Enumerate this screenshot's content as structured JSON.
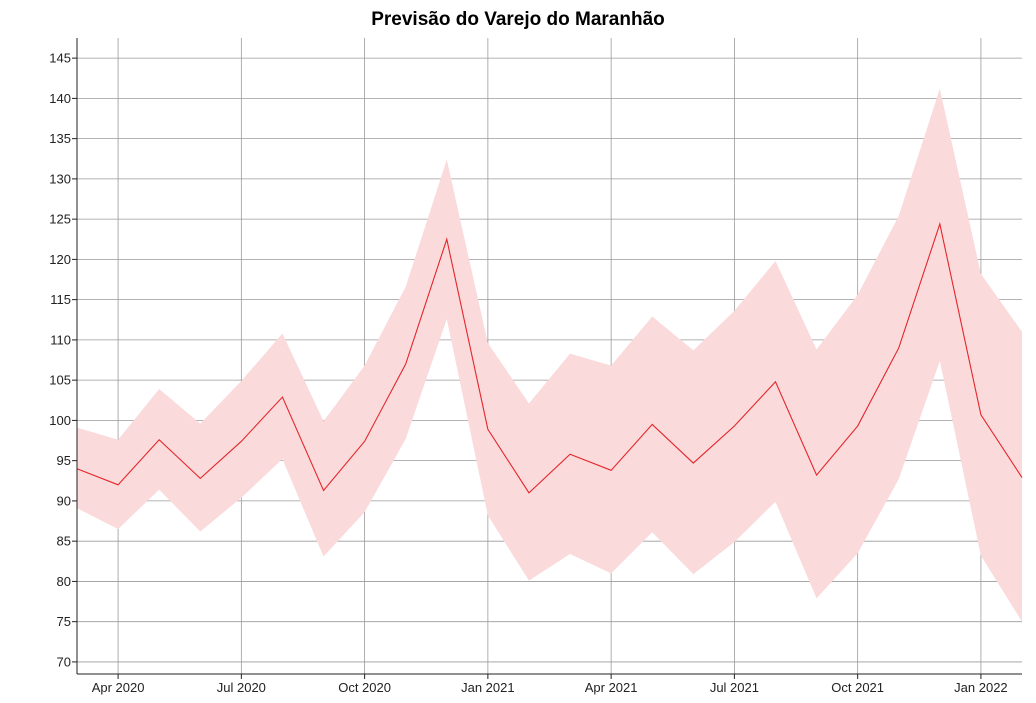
{
  "chart_data": {
    "type": "line",
    "title": "Previsão do Varejo do Maranhão",
    "xlabel": "",
    "ylabel": "",
    "x": [
      "2020-03",
      "2020-04",
      "2020-05",
      "2020-06",
      "2020-07",
      "2020-08",
      "2020-09",
      "2020-10",
      "2020-11",
      "2020-12",
      "2021-01",
      "2021-02",
      "2021-03",
      "2021-04",
      "2021-05",
      "2021-06",
      "2021-07",
      "2021-08",
      "2021-09",
      "2021-10",
      "2021-11",
      "2021-12",
      "2022-01",
      "2022-02"
    ],
    "xlim": [
      "2020-03",
      "2022-02"
    ],
    "ylim": [
      68.5,
      147.5
    ],
    "x_ticks": [
      {
        "at": "2020-04",
        "label": "Apr 2020"
      },
      {
        "at": "2020-07",
        "label": "Jul 2020"
      },
      {
        "at": "2020-10",
        "label": "Oct 2020"
      },
      {
        "at": "2021-01",
        "label": "Jan 2021"
      },
      {
        "at": "2021-04",
        "label": "Apr 2021"
      },
      {
        "at": "2021-07",
        "label": "Jul 2021"
      },
      {
        "at": "2021-10",
        "label": "Oct 2021"
      },
      {
        "at": "2022-01",
        "label": "Jan 2022"
      }
    ],
    "y_ticks": [
      70,
      75,
      80,
      85,
      90,
      95,
      100,
      105,
      110,
      115,
      120,
      125,
      130,
      135,
      140,
      145
    ],
    "grid": true,
    "series": [
      {
        "values": [
          94.0,
          92.0,
          97.6,
          92.8,
          97.4,
          102.9,
          91.3,
          97.4,
          107.0,
          122.5,
          98.9,
          91.0,
          95.8,
          93.8,
          99.5,
          94.7,
          99.3,
          104.8,
          93.2,
          99.3,
          109.0,
          124.4,
          100.7,
          92.9
        ],
        "lower": [
          89.1,
          86.5,
          91.4,
          86.2,
          90.4,
          95.2,
          83.1,
          88.6,
          97.7,
          112.6,
          88.2,
          80.1,
          83.4,
          81.0,
          86.1,
          80.9,
          84.9,
          89.9,
          77.9,
          83.5,
          92.7,
          107.4,
          83.2,
          75.0
        ],
        "upper": [
          99.1,
          97.6,
          103.9,
          99.6,
          104.9,
          110.8,
          99.9,
          106.8,
          116.6,
          132.4,
          109.6,
          102.1,
          108.3,
          106.8,
          112.9,
          108.7,
          113.6,
          119.8,
          108.8,
          115.6,
          125.4,
          141.2,
          118.2,
          111.0
        ]
      }
    ],
    "colors": {
      "line": "#e4262b",
      "band": "#fadadb",
      "grid": "#9a9a9a",
      "axis": "#222222",
      "text": "#222222"
    }
  }
}
